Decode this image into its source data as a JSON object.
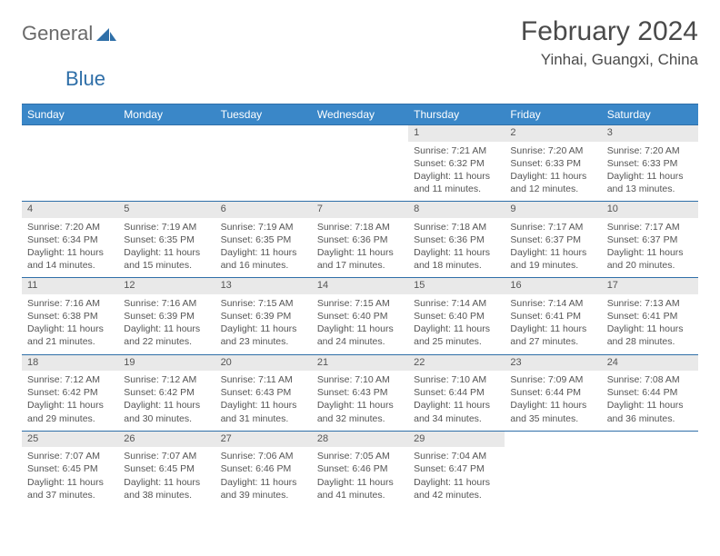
{
  "logo": {
    "general": "General",
    "blue": "Blue"
  },
  "title": "February 2024",
  "location": "Yinhai, Guangxi, China",
  "colors": {
    "header_bg": "#3a87c8",
    "header_border": "#2f6fa8",
    "daynum_bg": "#e9e9e9",
    "text": "#4a4a4a",
    "logo_blue": "#2f6fa8"
  },
  "weekdays": [
    "Sunday",
    "Monday",
    "Tuesday",
    "Wednesday",
    "Thursday",
    "Friday",
    "Saturday"
  ],
  "weeks": [
    [
      null,
      null,
      null,
      null,
      {
        "d": "1",
        "sr": "7:21 AM",
        "ss": "6:32 PM",
        "dl": "11 hours and 11 minutes."
      },
      {
        "d": "2",
        "sr": "7:20 AM",
        "ss": "6:33 PM",
        "dl": "11 hours and 12 minutes."
      },
      {
        "d": "3",
        "sr": "7:20 AM",
        "ss": "6:33 PM",
        "dl": "11 hours and 13 minutes."
      }
    ],
    [
      {
        "d": "4",
        "sr": "7:20 AM",
        "ss": "6:34 PM",
        "dl": "11 hours and 14 minutes."
      },
      {
        "d": "5",
        "sr": "7:19 AM",
        "ss": "6:35 PM",
        "dl": "11 hours and 15 minutes."
      },
      {
        "d": "6",
        "sr": "7:19 AM",
        "ss": "6:35 PM",
        "dl": "11 hours and 16 minutes."
      },
      {
        "d": "7",
        "sr": "7:18 AM",
        "ss": "6:36 PM",
        "dl": "11 hours and 17 minutes."
      },
      {
        "d": "8",
        "sr": "7:18 AM",
        "ss": "6:36 PM",
        "dl": "11 hours and 18 minutes."
      },
      {
        "d": "9",
        "sr": "7:17 AM",
        "ss": "6:37 PM",
        "dl": "11 hours and 19 minutes."
      },
      {
        "d": "10",
        "sr": "7:17 AM",
        "ss": "6:37 PM",
        "dl": "11 hours and 20 minutes."
      }
    ],
    [
      {
        "d": "11",
        "sr": "7:16 AM",
        "ss": "6:38 PM",
        "dl": "11 hours and 21 minutes."
      },
      {
        "d": "12",
        "sr": "7:16 AM",
        "ss": "6:39 PM",
        "dl": "11 hours and 22 minutes."
      },
      {
        "d": "13",
        "sr": "7:15 AM",
        "ss": "6:39 PM",
        "dl": "11 hours and 23 minutes."
      },
      {
        "d": "14",
        "sr": "7:15 AM",
        "ss": "6:40 PM",
        "dl": "11 hours and 24 minutes."
      },
      {
        "d": "15",
        "sr": "7:14 AM",
        "ss": "6:40 PM",
        "dl": "11 hours and 25 minutes."
      },
      {
        "d": "16",
        "sr": "7:14 AM",
        "ss": "6:41 PM",
        "dl": "11 hours and 27 minutes."
      },
      {
        "d": "17",
        "sr": "7:13 AM",
        "ss": "6:41 PM",
        "dl": "11 hours and 28 minutes."
      }
    ],
    [
      {
        "d": "18",
        "sr": "7:12 AM",
        "ss": "6:42 PM",
        "dl": "11 hours and 29 minutes."
      },
      {
        "d": "19",
        "sr": "7:12 AM",
        "ss": "6:42 PM",
        "dl": "11 hours and 30 minutes."
      },
      {
        "d": "20",
        "sr": "7:11 AM",
        "ss": "6:43 PM",
        "dl": "11 hours and 31 minutes."
      },
      {
        "d": "21",
        "sr": "7:10 AM",
        "ss": "6:43 PM",
        "dl": "11 hours and 32 minutes."
      },
      {
        "d": "22",
        "sr": "7:10 AM",
        "ss": "6:44 PM",
        "dl": "11 hours and 34 minutes."
      },
      {
        "d": "23",
        "sr": "7:09 AM",
        "ss": "6:44 PM",
        "dl": "11 hours and 35 minutes."
      },
      {
        "d": "24",
        "sr": "7:08 AM",
        "ss": "6:44 PM",
        "dl": "11 hours and 36 minutes."
      }
    ],
    [
      {
        "d": "25",
        "sr": "7:07 AM",
        "ss": "6:45 PM",
        "dl": "11 hours and 37 minutes."
      },
      {
        "d": "26",
        "sr": "7:07 AM",
        "ss": "6:45 PM",
        "dl": "11 hours and 38 minutes."
      },
      {
        "d": "27",
        "sr": "7:06 AM",
        "ss": "6:46 PM",
        "dl": "11 hours and 39 minutes."
      },
      {
        "d": "28",
        "sr": "7:05 AM",
        "ss": "6:46 PM",
        "dl": "11 hours and 41 minutes."
      },
      {
        "d": "29",
        "sr": "7:04 AM",
        "ss": "6:47 PM",
        "dl": "11 hours and 42 minutes."
      },
      null,
      null
    ]
  ],
  "labels": {
    "sunrise": "Sunrise:",
    "sunset": "Sunset:",
    "daylight": "Daylight:"
  }
}
